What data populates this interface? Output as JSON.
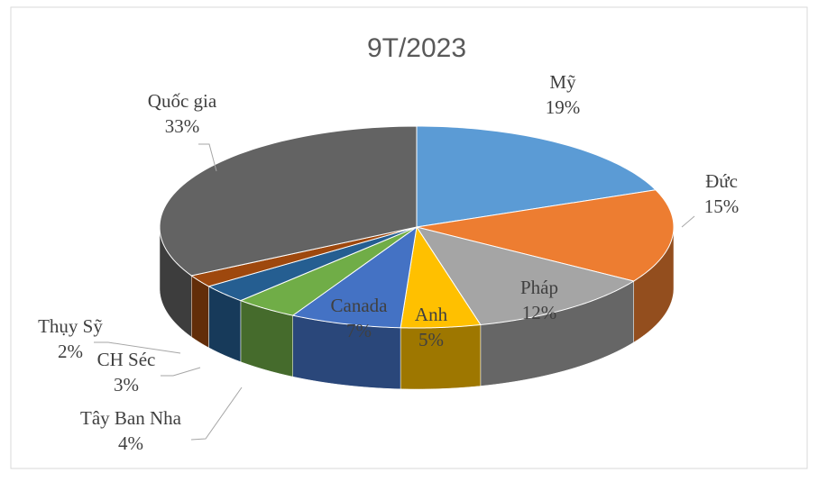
{
  "chart_data": {
    "type": "pie3d",
    "title": "9T/2023",
    "categories": [
      "Mỹ",
      "Đức",
      "Pháp",
      "Anh",
      "Canada",
      "Tây Ban Nha",
      "CH Séc",
      "Thụy Sỹ",
      "Quốc gia"
    ],
    "values": [
      19,
      15,
      12,
      5,
      7,
      4,
      3,
      2,
      33
    ],
    "value_labels": [
      "19%",
      "15%",
      "12%",
      "5%",
      "7%",
      "4%",
      "3%",
      "2%",
      "33%"
    ],
    "colors": [
      "#5b9bd5",
      "#ed7d31",
      "#a5a5a5",
      "#ffc000",
      "#4472c4",
      "#70ad47",
      "#255e91",
      "#9e480e",
      "#636363"
    ]
  }
}
